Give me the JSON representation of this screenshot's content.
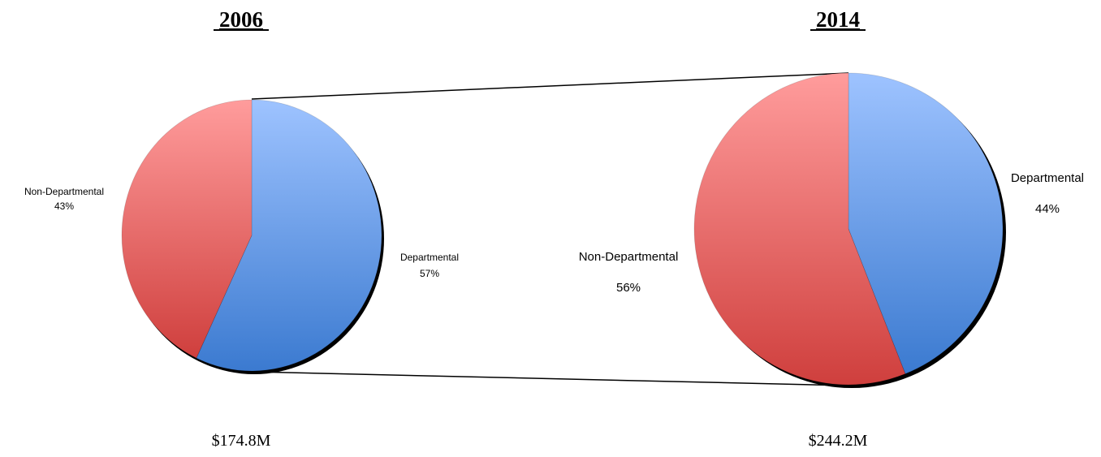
{
  "chart_data": [
    {
      "type": "pie",
      "title": "2006",
      "total": "$174.8M",
      "slices": [
        {
          "label": "Departmental",
          "value": 57,
          "value_label": "57%",
          "color_top": "#9ec3ff",
          "color_bottom": "#3b7ad0"
        },
        {
          "label": "Non-Departmental",
          "value": 43,
          "value_label": "43%",
          "color_top": "#ff9c9c",
          "color_bottom": "#cf3f3d"
        }
      ]
    },
    {
      "type": "pie",
      "title": "2014",
      "total": "$244.2M",
      "slices": [
        {
          "label": "Departmental",
          "value": 44,
          "value_label": "44%",
          "color_top": "#9ec3ff",
          "color_bottom": "#3b7ad0"
        },
        {
          "label": "Non-Departmental",
          "value": 56,
          "value_label": "56%",
          "color_top": "#ff9c9c",
          "color_bottom": "#cf3f3d"
        }
      ]
    }
  ],
  "colors": {
    "departmental": "#5b8fdf",
    "non_departmental": "#e06262",
    "outline": "#000000"
  }
}
